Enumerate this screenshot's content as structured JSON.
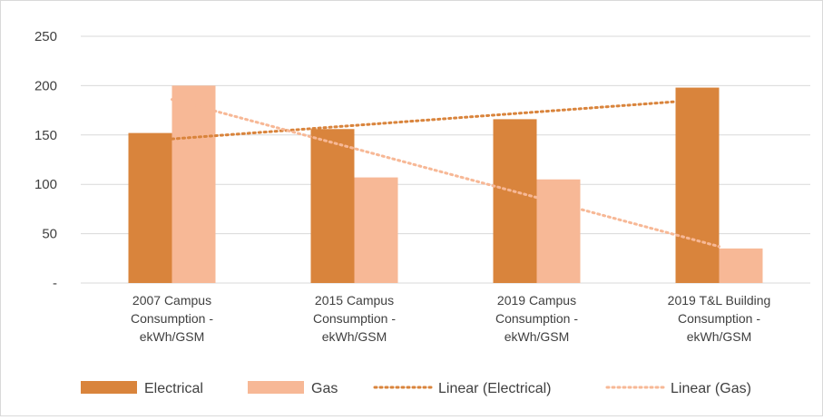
{
  "chart_data": {
    "type": "bar",
    "title": "",
    "xlabel": "",
    "ylabel": "",
    "ylim": [
      0,
      250
    ],
    "yticks": [
      0,
      50,
      100,
      150,
      200,
      250
    ],
    "ytick_labels": [
      "-",
      "50",
      "100",
      "150",
      "200",
      "250"
    ],
    "grid": true,
    "legend_position": "bottom",
    "categories": [
      [
        "2007 Campus",
        "Consumption -",
        "ekWh/GSM"
      ],
      [
        "2015 Campus",
        "Consumption -",
        "ekWh/GSM"
      ],
      [
        "2019 Campus",
        "Consumption -",
        "ekWh/GSM"
      ],
      [
        "2019 T&L Building",
        "Consumption -",
        "ekWh/GSM"
      ]
    ],
    "series": [
      {
        "name": "Electrical",
        "values": [
          152,
          156,
          166,
          198
        ],
        "color": "#d9843c"
      },
      {
        "name": "Gas",
        "values": [
          200,
          107,
          105,
          35
        ],
        "color": "#f7b896"
      }
    ],
    "trendlines": [
      {
        "name": "Linear (Electrical)",
        "start": 146,
        "end": 187,
        "color": "#d9843c",
        "style": "dotted"
      },
      {
        "name": "Linear (Gas)",
        "start": 186,
        "end": 37,
        "color": "#f7b896",
        "style": "dotted"
      }
    ]
  }
}
